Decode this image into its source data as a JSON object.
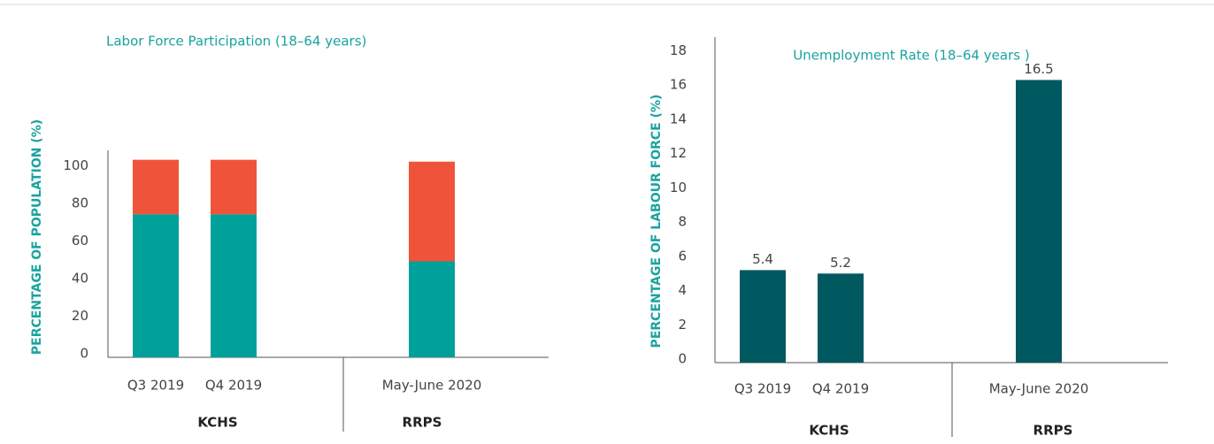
{
  "chart_data": [
    {
      "type": "stacked-bar",
      "title": "Labor Force Participation (18–64 years)",
      "y_label": "PERCENTAGE OF POPULATION (%)",
      "categories": [
        "Q3 2019",
        "Q4 2019",
        "May-June 2020"
      ],
      "groups": [
        "KCHS",
        "RRPS"
      ],
      "series": [
        {
          "color": "#00a19a",
          "values": [
            76,
            76,
            51
          ]
        },
        {
          "color": "#ef5339",
          "values": [
            29,
            29,
            53
          ]
        }
      ],
      "ylim": [
        0,
        110
      ],
      "yticks": [
        0,
        20,
        40,
        60,
        80,
        100
      ]
    },
    {
      "type": "bar",
      "title": "Unemployment Rate (18–64 years )",
      "y_label": "PERCENTAGE OF LABOUR FORCE (%)",
      "categories": [
        "Q3 2019",
        "Q4 2019",
        "May-June 2020"
      ],
      "groups": [
        "KCHS",
        "RRPS"
      ],
      "series": [
        {
          "color": "#005961",
          "values": [
            5.4,
            5.2,
            16.5
          ]
        }
      ],
      "ylim": [
        0,
        19
      ],
      "yticks": [
        0,
        2,
        4,
        6,
        8,
        10,
        12,
        14,
        16,
        18
      ]
    }
  ]
}
